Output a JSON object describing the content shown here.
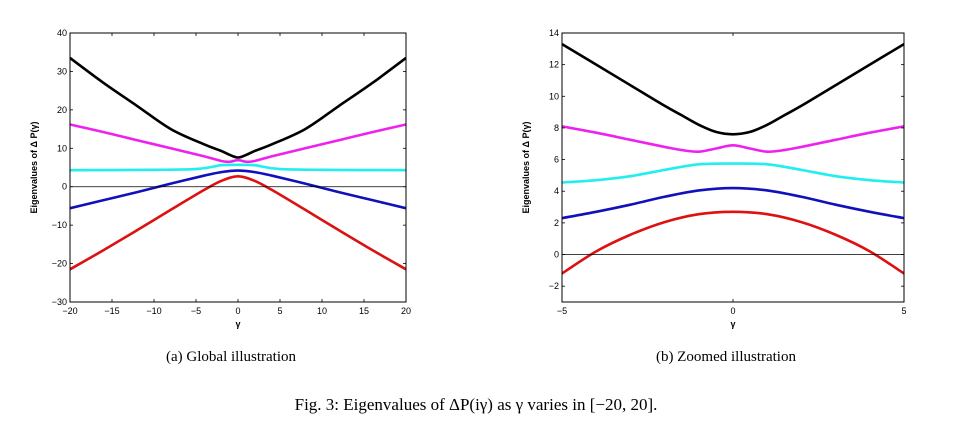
{
  "figure_caption": "Fig. 3: Eigenvalues of ΔP(iγ) as γ varies in [−20, 20].",
  "colors": {
    "black": "#000000",
    "magenta": "#ee22ee",
    "cyan": "#22eeee",
    "blue": "#1111bb",
    "red": "#dd1111",
    "zero_line": "#000000"
  },
  "chart_data": [
    {
      "type": "line",
      "caption": "(a) Global illustration",
      "xlabel": "γ",
      "ylabel": "Eigenvalues of Δ P(γ)",
      "xlim": [
        -20,
        20
      ],
      "ylim": [
        -30,
        40
      ],
      "xticks": [
        -20,
        -15,
        -10,
        -5,
        0,
        5,
        10,
        15,
        20
      ],
      "yticks": [
        -30,
        -20,
        -10,
        0,
        10,
        20,
        30,
        40
      ],
      "grid": false,
      "hline_y": 0,
      "series": [
        {
          "color": "#000000",
          "x": [
            -20,
            -16,
            -12,
            -8,
            -4,
            -2,
            -1,
            0,
            1,
            2,
            4,
            8,
            12,
            16,
            20
          ],
          "y": [
            33.5,
            27.0,
            21.0,
            15.0,
            11.0,
            9.3,
            8.3,
            7.6,
            8.3,
            9.3,
            11.0,
            15.0,
            21.0,
            27.0,
            33.5
          ]
        },
        {
          "color": "#ee22ee",
          "x": [
            -20,
            -16,
            -12,
            -8,
            -4,
            -2,
            -1,
            0,
            1,
            2,
            4,
            8,
            12,
            16,
            20
          ],
          "y": [
            16.2,
            14.2,
            12.1,
            10.0,
            7.9,
            6.7,
            6.5,
            6.9,
            6.5,
            6.7,
            7.9,
            10.0,
            12.1,
            14.2,
            16.2
          ]
        },
        {
          "color": "#22eeee",
          "x": [
            -20,
            -10,
            -5,
            -3,
            -2,
            0,
            2,
            3,
            5,
            10,
            20
          ],
          "y": [
            4.3,
            4.4,
            4.6,
            5.2,
            5.6,
            5.7,
            5.6,
            5.2,
            4.6,
            4.4,
            4.3
          ]
        },
        {
          "color": "#1111bb",
          "x": [
            -20,
            -16,
            -12,
            -8,
            -4,
            -2,
            0,
            2,
            4,
            8,
            12,
            16,
            20
          ],
          "y": [
            -5.6,
            -3.5,
            -1.4,
            0.8,
            2.9,
            3.8,
            4.2,
            3.8,
            2.9,
            0.8,
            -1.4,
            -3.5,
            -5.6
          ]
        },
        {
          "color": "#dd1111",
          "x": [
            -20,
            -16,
            -12,
            -8,
            -4,
            -2,
            0,
            2,
            4,
            8,
            12,
            16,
            20
          ],
          "y": [
            -21.5,
            -16.5,
            -11.3,
            -6.0,
            -0.8,
            1.5,
            2.7,
            1.5,
            -0.8,
            -6.0,
            -11.3,
            -16.5,
            -21.5
          ]
        }
      ]
    },
    {
      "type": "line",
      "caption": "(b) Zoomed illustration",
      "xlabel": "γ",
      "ylabel": "Eigenvalues of Δ P(γ)",
      "xlim": [
        -5,
        5
      ],
      "ylim": [
        -3,
        14
      ],
      "xticks": [
        -5,
        0,
        5
      ],
      "yticks": [
        -2,
        0,
        2,
        4,
        6,
        8,
        10,
        12,
        14
      ],
      "grid": false,
      "hline_y": 0,
      "series": [
        {
          "color": "#000000",
          "x": [
            -5,
            -4,
            -3,
            -2,
            -1.5,
            -1,
            -0.5,
            0,
            0.5,
            1,
            1.5,
            2,
            3,
            4,
            5
          ],
          "y": [
            13.3,
            12.0,
            10.7,
            9.4,
            8.8,
            8.2,
            7.75,
            7.6,
            7.75,
            8.2,
            8.8,
            9.4,
            10.7,
            12.0,
            13.3
          ]
        },
        {
          "color": "#ee22ee",
          "x": [
            -5,
            -4,
            -3,
            -2,
            -1.5,
            -1,
            -0.5,
            0,
            0.5,
            1,
            1.5,
            2,
            3,
            4,
            5
          ],
          "y": [
            8.1,
            7.7,
            7.25,
            6.8,
            6.6,
            6.5,
            6.7,
            6.9,
            6.7,
            6.5,
            6.6,
            6.8,
            7.25,
            7.7,
            8.1
          ]
        },
        {
          "color": "#22eeee",
          "x": [
            -5,
            -4,
            -3,
            -2,
            -1,
            0,
            1,
            2,
            3,
            4,
            5
          ],
          "y": [
            4.55,
            4.7,
            4.95,
            5.35,
            5.7,
            5.75,
            5.7,
            5.35,
            4.95,
            4.7,
            4.55
          ]
        },
        {
          "color": "#1111bb",
          "x": [
            -5,
            -4,
            -3,
            -2,
            -1,
            0,
            1,
            2,
            3,
            4,
            5
          ],
          "y": [
            2.3,
            2.7,
            3.15,
            3.65,
            4.05,
            4.2,
            4.05,
            3.65,
            3.15,
            2.7,
            2.3
          ]
        },
        {
          "color": "#dd1111",
          "x": [
            -5,
            -4,
            -3,
            -2,
            -1,
            0,
            1,
            2,
            3,
            4,
            5
          ],
          "y": [
            -1.2,
            0.2,
            1.25,
            2.05,
            2.55,
            2.7,
            2.55,
            2.05,
            1.25,
            0.2,
            -1.2
          ]
        }
      ]
    }
  ]
}
